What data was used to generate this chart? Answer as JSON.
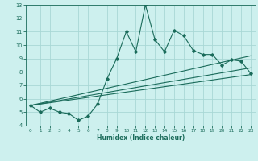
{
  "xlabel": "Humidex (Indice chaleur)",
  "bg_color": "#cdf0ee",
  "grid_color": "#a8d8d5",
  "line_color": "#1a6b5a",
  "xlim": [
    -0.5,
    23.5
  ],
  "ylim": [
    4,
    13
  ],
  "xticks": [
    0,
    1,
    2,
    3,
    4,
    5,
    6,
    7,
    8,
    9,
    10,
    11,
    12,
    13,
    14,
    15,
    16,
    17,
    18,
    19,
    20,
    21,
    22,
    23
  ],
  "yticks": [
    4,
    5,
    6,
    7,
    8,
    9,
    10,
    11,
    12,
    13
  ],
  "main_x": [
    0,
    1,
    2,
    3,
    4,
    5,
    6,
    7,
    8,
    9,
    10,
    11,
    12,
    13,
    14,
    15,
    16,
    17,
    18,
    19,
    20,
    21,
    22,
    23
  ],
  "main_y": [
    5.5,
    5.0,
    5.3,
    5.0,
    4.9,
    4.4,
    4.7,
    5.6,
    7.5,
    9.0,
    11.0,
    9.5,
    13.0,
    10.4,
    9.5,
    11.1,
    10.7,
    9.6,
    9.3,
    9.3,
    8.5,
    8.9,
    8.8,
    7.9
  ],
  "line2_x": [
    0,
    23
  ],
  "line2_y": [
    5.5,
    9.2
  ],
  "line3_x": [
    0,
    23
  ],
  "line3_y": [
    5.5,
    8.3
  ],
  "line4_x": [
    0,
    23
  ],
  "line4_y": [
    5.5,
    7.8
  ]
}
